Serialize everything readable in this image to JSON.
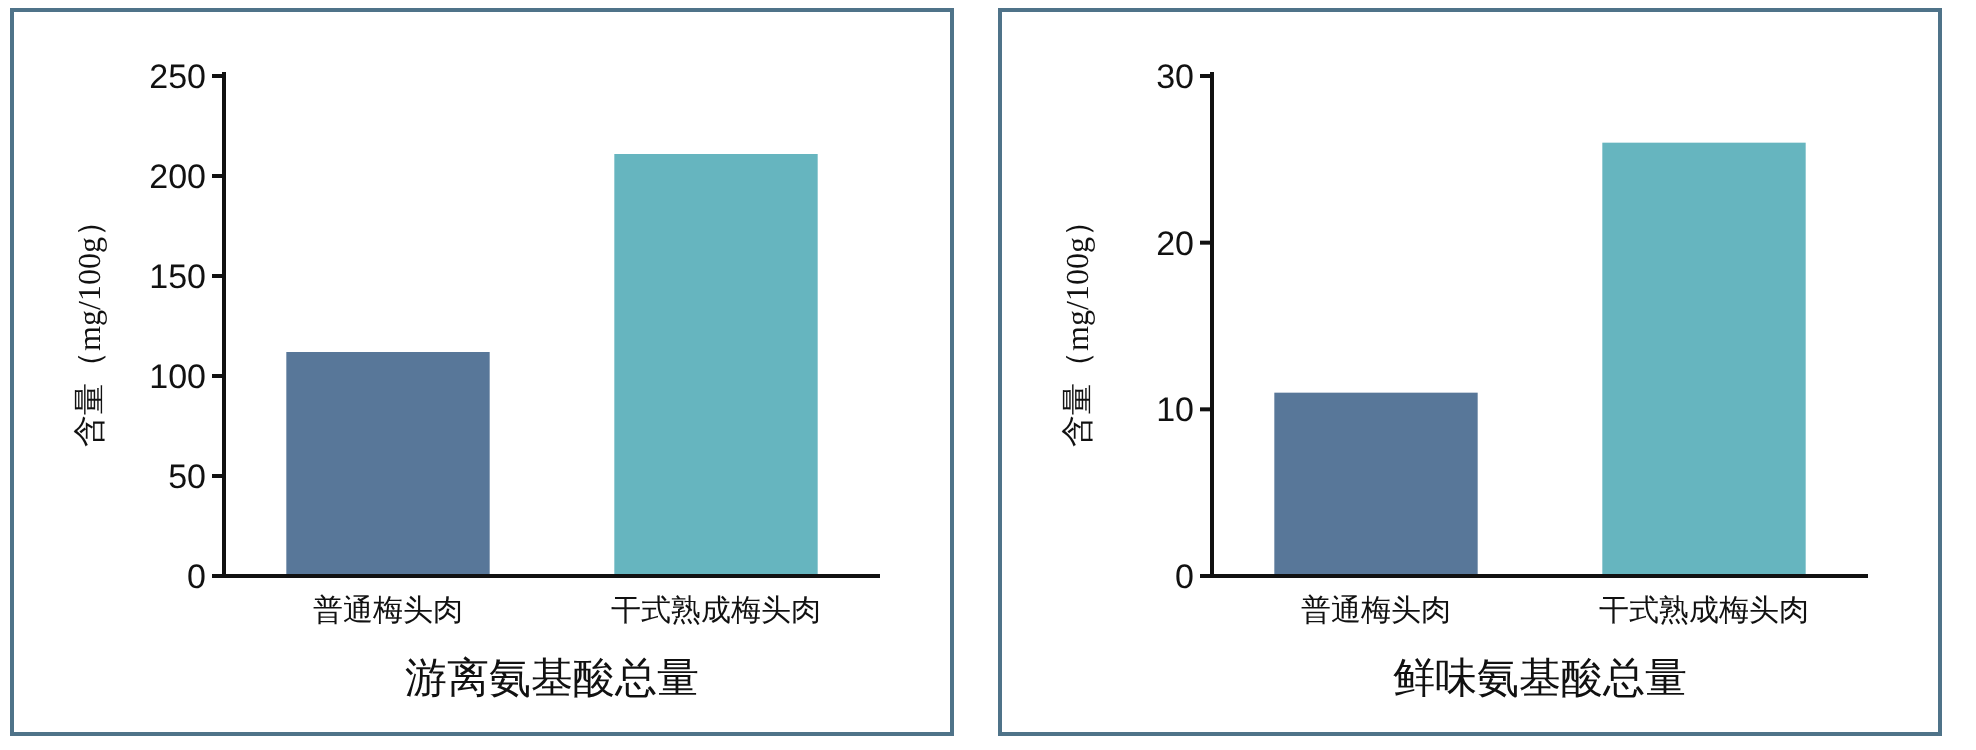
{
  "chart_data": [
    {
      "type": "bar",
      "categories": [
        "普通梅头肉",
        "干式熟成梅头肉"
      ],
      "values": [
        112,
        211
      ],
      "colors": [
        "#587799",
        "#66b5bf"
      ],
      "ylim": [
        0,
        250
      ],
      "yticks": [
        0,
        50,
        100,
        150,
        200,
        250
      ],
      "ylabel": "含量（mg/100g）",
      "xlabel": "游离氨基酸总量"
    },
    {
      "type": "bar",
      "categories": [
        "普通梅头肉",
        "干式熟成梅头肉"
      ],
      "values": [
        11,
        26
      ],
      "colors": [
        "#587799",
        "#66b5bf"
      ],
      "ylim": [
        0,
        30
      ],
      "yticks": [
        0,
        10,
        20,
        30
      ],
      "ylabel": "含量（mg/100g）",
      "xlabel": "鲜味氨基酸总量"
    }
  ]
}
